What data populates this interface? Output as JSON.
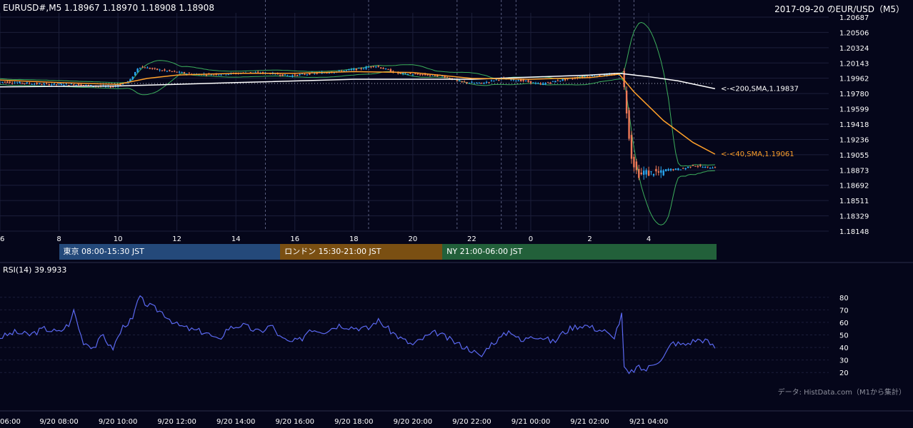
{
  "header": {
    "symbol_quote": "EURUSD#,M5 1.18967 1.18970 1.18908 1.18908",
    "title": "2017-09-20 のEUR/USD（M5）"
  },
  "sessions": [
    {
      "label": "東京 08:00-15:30 JST",
      "color": "#24497a"
    },
    {
      "label": "ロンドン 15:30-21:00 JST",
      "color": "#7a4f12"
    },
    {
      "label": "NY 21:00-06:00 JST",
      "color": "#22603a"
    }
  ],
  "rsi_title": "RSI(14) 39.9933",
  "credit": "データ: HistData.com（M1から集計）",
  "colors": {
    "background": "#05061a",
    "grid": "#1c1f3a",
    "candle_up": "#2aa6f0",
    "candle_down": "#f07a57",
    "sma40": "#ffa02a",
    "sma200": "#ffffff",
    "bollinger": "#3cae5c",
    "rsi_line": "#5a68f0"
  },
  "chart_data": [
    {
      "type": "candlestick",
      "name": "price",
      "y_ticks": [
        "1.20687",
        "1.20506",
        "1.20324",
        "1.20143",
        "1.19962",
        "1.19780",
        "1.19599",
        "1.19418",
        "1.19236",
        "1.19055",
        "1.18873",
        "1.18692",
        "1.18511",
        "1.18329",
        "1.18148"
      ],
      "ylim": [
        1.18148,
        1.20687
      ],
      "x_ticks": [
        {
          "label": "6",
          "h": 6
        },
        {
          "label": "8",
          "h": 8
        },
        {
          "label": "10",
          "h": 10
        },
        {
          "label": "12",
          "h": 12
        },
        {
          "label": "14",
          "h": 14
        },
        {
          "label": "16",
          "h": 16
        },
        {
          "label": "18",
          "h": 18
        },
        {
          "label": "20",
          "h": 20
        },
        {
          "label": "22",
          "h": 22
        },
        {
          "label": "0",
          "h": 24
        },
        {
          "label": "2",
          "h": 26
        },
        {
          "label": "4",
          "h": 28
        }
      ],
      "xlim_hours": [
        6,
        30.3
      ],
      "price_path": [
        [
          6.0,
          1.1992
        ],
        [
          6.6,
          1.1991
        ],
        [
          7.5,
          1.1989
        ],
        [
          8.5,
          1.1989
        ],
        [
          9.2,
          1.1987
        ],
        [
          9.8,
          1.1986
        ],
        [
          10.4,
          1.1993
        ],
        [
          10.7,
          1.201
        ],
        [
          11.4,
          1.2006
        ],
        [
          12.5,
          1.2001
        ],
        [
          13.5,
          1.2001
        ],
        [
          14.5,
          1.2003
        ],
        [
          15.2,
          1.2002
        ],
        [
          15.8,
          1.1999
        ],
        [
          16.6,
          1.2002
        ],
        [
          17.4,
          1.2004
        ],
        [
          18.3,
          1.2008
        ],
        [
          18.7,
          1.2011
        ],
        [
          19.5,
          1.2002
        ],
        [
          20.5,
          1.2
        ],
        [
          21.0,
          1.1999
        ],
        [
          21.6,
          1.1992
        ],
        [
          22.3,
          1.199
        ],
        [
          23.0,
          1.1996
        ],
        [
          23.8,
          1.1993
        ],
        [
          24.3,
          1.1989
        ],
        [
          25.0,
          1.1994
        ],
        [
          25.8,
          1.1998
        ],
        [
          26.5,
          1.2
        ],
        [
          27.0,
          1.2001
        ],
        [
          27.1,
          1.2003
        ],
        [
          27.12,
          1.1999
        ],
        [
          27.2,
          1.1974
        ],
        [
          27.3,
          1.194
        ],
        [
          27.4,
          1.1905
        ],
        [
          27.55,
          1.1888
        ],
        [
          27.7,
          1.188
        ],
        [
          27.85,
          1.1886
        ],
        [
          28.0,
          1.1883
        ],
        [
          28.2,
          1.1885
        ],
        [
          28.4,
          1.1883
        ],
        [
          28.6,
          1.1888
        ],
        [
          28.9,
          1.1888
        ],
        [
          29.2,
          1.1889
        ],
        [
          29.5,
          1.1893
        ],
        [
          29.8,
          1.1891
        ],
        [
          30.0,
          1.189
        ],
        [
          30.25,
          1.18908
        ]
      ],
      "sma200_path": [
        [
          6.0,
          1.1986
        ],
        [
          10.0,
          1.1987
        ],
        [
          14.0,
          1.1991
        ],
        [
          18.0,
          1.1995
        ],
        [
          22.0,
          1.1995
        ],
        [
          26.0,
          1.2
        ],
        [
          27.0,
          1.2002
        ],
        [
          28.0,
          1.1998
        ],
        [
          29.0,
          1.1993
        ],
        [
          30.25,
          1.19837
        ]
      ],
      "sma40_path": [
        [
          6.0,
          1.1994
        ],
        [
          8.0,
          1.1991
        ],
        [
          10.0,
          1.1989
        ],
        [
          11.0,
          1.1996
        ],
        [
          12.0,
          1.2
        ],
        [
          14.0,
          1.2002
        ],
        [
          16.0,
          1.2002
        ],
        [
          18.0,
          1.2004
        ],
        [
          20.0,
          1.2003
        ],
        [
          22.0,
          1.1996
        ],
        [
          24.0,
          1.1995
        ],
        [
          26.0,
          1.1997
        ],
        [
          27.0,
          1.2001
        ],
        [
          27.5,
          1.198
        ],
        [
          28.5,
          1.1946
        ],
        [
          29.5,
          1.192
        ],
        [
          30.25,
          1.19061
        ]
      ],
      "sma40_label": "<-<40,SMA,1.19061",
      "sma200_label": "<-<200,SMA,1.19837",
      "dotted_reference_price": 1.199,
      "vertical_markers_hours": [
        15.0,
        18.5,
        21.5,
        23.0,
        23.5,
        27.0,
        27.5
      ]
    },
    {
      "type": "line",
      "name": "RSI(14)",
      "y_ticks": [
        "80",
        "70",
        "60",
        "50",
        "40",
        "30",
        "20"
      ],
      "ylim": [
        15,
        85
      ],
      "x_ticks": [
        {
          "label": "06:00",
          "h": 6
        },
        {
          "label": "9/20 08:00",
          "h": 8
        },
        {
          "label": "9/20 10:00",
          "h": 10
        },
        {
          "label": "9/20 12:00",
          "h": 12
        },
        {
          "label": "9/20 14:00",
          "h": 14
        },
        {
          "label": "9/20 16:00",
          "h": 16
        },
        {
          "label": "9/20 18:00",
          "h": 18
        },
        {
          "label": "9/20 20:00",
          "h": 20
        },
        {
          "label": "9/20 22:00",
          "h": 22
        },
        {
          "label": "9/21 00:00",
          "h": 24
        },
        {
          "label": "9/21 02:00",
          "h": 26
        },
        {
          "label": "9/21 04:00",
          "h": 28
        }
      ],
      "rsi_path": [
        [
          6.0,
          48
        ],
        [
          6.5,
          52
        ],
        [
          7.0,
          50
        ],
        [
          7.5,
          55
        ],
        [
          8.0,
          52
        ],
        [
          8.4,
          60
        ],
        [
          8.5,
          70
        ],
        [
          8.8,
          45
        ],
        [
          9.2,
          40
        ],
        [
          9.5,
          50
        ],
        [
          9.8,
          38
        ],
        [
          10.2,
          58
        ],
        [
          10.5,
          62
        ],
        [
          10.7,
          80
        ],
        [
          11.0,
          74
        ],
        [
          11.5,
          68
        ],
        [
          12.0,
          58
        ],
        [
          12.5,
          54
        ],
        [
          13.0,
          52
        ],
        [
          13.4,
          45
        ],
        [
          13.7,
          55
        ],
        [
          14.2,
          58
        ],
        [
          14.8,
          52
        ],
        [
          15.2,
          58
        ],
        [
          15.5,
          48
        ],
        [
          15.8,
          44
        ],
        [
          16.2,
          46
        ],
        [
          16.5,
          55
        ],
        [
          17.0,
          53
        ],
        [
          17.5,
          58
        ],
        [
          18.0,
          56
        ],
        [
          18.5,
          55
        ],
        [
          18.8,
          62
        ],
        [
          19.2,
          54
        ],
        [
          19.6,
          47
        ],
        [
          20.0,
          42
        ],
        [
          20.4,
          48
        ],
        [
          20.8,
          52
        ],
        [
          21.2,
          47
        ],
        [
          21.6,
          42
        ],
        [
          22.0,
          38
        ],
        [
          22.3,
          32
        ],
        [
          22.6,
          42
        ],
        [
          23.0,
          48
        ],
        [
          23.3,
          54
        ],
        [
          23.7,
          44
        ],
        [
          24.0,
          50
        ],
        [
          24.4,
          48
        ],
        [
          24.8,
          44
        ],
        [
          25.0,
          50
        ],
        [
          25.4,
          56
        ],
        [
          25.8,
          58
        ],
        [
          26.2,
          55
        ],
        [
          26.5,
          53
        ],
        [
          26.8,
          47
        ],
        [
          27.0,
          60
        ],
        [
          27.1,
          67
        ],
        [
          27.15,
          25
        ],
        [
          27.3,
          18
        ],
        [
          27.6,
          24
        ],
        [
          27.9,
          22
        ],
        [
          28.2,
          28
        ],
        [
          28.5,
          32
        ],
        [
          28.8,
          44
        ],
        [
          29.2,
          42
        ],
        [
          29.6,
          46
        ],
        [
          29.9,
          46
        ],
        [
          30.25,
          40
        ]
      ],
      "grid_levels": [
        80,
        70,
        60,
        50,
        40,
        30,
        20
      ]
    }
  ]
}
